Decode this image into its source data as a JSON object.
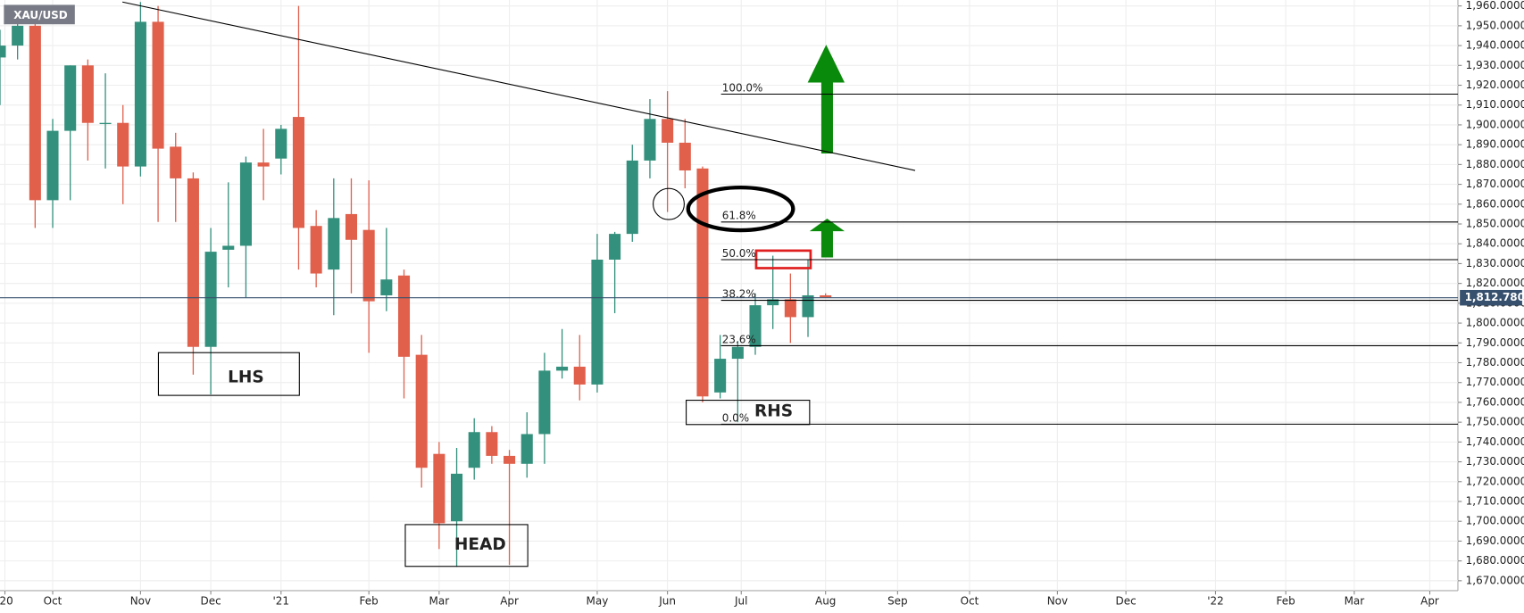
{
  "chart_data": {
    "type": "candlestick",
    "title": "XAU/USD",
    "x": [
      0,
      1,
      2,
      3,
      4,
      5,
      6,
      7,
      8,
      9,
      10,
      11,
      12,
      13,
      14,
      15,
      16,
      17,
      18,
      19,
      20,
      21,
      22,
      23,
      24,
      25,
      26,
      27,
      28,
      29,
      30,
      31,
      32,
      33,
      34,
      35,
      36,
      37,
      38,
      39,
      40,
      41,
      42,
      43,
      44,
      45,
      46,
      47
    ],
    "open": [
      1934,
      1940,
      1950,
      1862,
      1897,
      1930,
      1901,
      1901,
      1879,
      1952,
      1889,
      1873,
      1788,
      1837,
      1839,
      1881,
      1883,
      1904,
      1849,
      1827,
      1855,
      1847,
      1814,
      1824,
      1784,
      1734,
      1700,
      1727,
      1745,
      1733,
      1729,
      1744,
      1776,
      1778,
      1769,
      1832,
      1845,
      1882,
      1903,
      1891,
      1878,
      1765,
      1782,
      1788,
      1809,
      1812,
      1803,
      1814
    ],
    "high": [
      1948,
      1960,
      1958,
      1903,
      1930,
      1933,
      1926,
      1910,
      1962,
      1960,
      1896,
      1876,
      1848,
      1871,
      1884,
      1898,
      1900,
      1960,
      1857,
      1873,
      1873,
      1872,
      1848,
      1827,
      1794,
      1740,
      1737,
      1752,
      1748,
      1736,
      1755,
      1785,
      1797,
      1794,
      1845,
      1846,
      1890,
      1913,
      1917,
      1903,
      1879,
      1794,
      1791,
      1815,
      1834,
      1825,
      1832,
      1815
    ],
    "low": [
      1910,
      1933,
      1848,
      1848,
      1862,
      1882,
      1878,
      1860,
      1874,
      1851,
      1851,
      1774,
      1764,
      1818,
      1813,
      1862,
      1875,
      1827,
      1818,
      1804,
      1815,
      1785,
      1806,
      1762,
      1717,
      1686,
      1677,
      1721,
      1729,
      1678,
      1722,
      1729,
      1772,
      1761,
      1765,
      1805,
      1841,
      1873,
      1856,
      1868,
      1760,
      1762,
      1750,
      1784,
      1797,
      1790,
      1793,
      1813
    ],
    "close": [
      1940,
      1950,
      1862,
      1897,
      1930,
      1901,
      1901,
      1879,
      1952,
      1888,
      1873,
      1788,
      1836,
      1839,
      1881,
      1879,
      1898,
      1848,
      1825,
      1853,
      1842,
      1811,
      1822,
      1783,
      1727,
      1699,
      1724,
      1745,
      1733,
      1729,
      1744,
      1776,
      1778,
      1769,
      1832,
      1845,
      1882,
      1903,
      1891,
      1877,
      1763,
      1782,
      1788,
      1809,
      1812,
      1803,
      1814,
      1813
    ],
    "up_color": "#33907c",
    "down_color": "#e0604c",
    "xlim": [
      0,
      83
    ],
    "xticks": [
      {
        "value": 0.28,
        "label": "'20"
      },
      {
        "value": 3,
        "label": "Oct"
      },
      {
        "value": 8,
        "label": "Nov"
      },
      {
        "value": 12,
        "label": "Dec"
      },
      {
        "value": 16,
        "label": "'21"
      },
      {
        "value": 21,
        "label": "Feb"
      },
      {
        "value": 25,
        "label": "Mar"
      },
      {
        "value": 29,
        "label": "Apr"
      },
      {
        "value": 34,
        "label": "May"
      },
      {
        "value": 38,
        "label": "Jun"
      },
      {
        "value": 42.2,
        "label": "Jul"
      },
      {
        "value": 47,
        "label": "Aug"
      },
      {
        "value": 51.1,
        "label": "Sep"
      },
      {
        "value": 55.2,
        "label": "Oct"
      },
      {
        "value": 60.2,
        "label": "Nov"
      },
      {
        "value": 64.1,
        "label": "Dec"
      },
      {
        "value": 69.2,
        "label": "'22"
      },
      {
        "value": 73.2,
        "label": "Feb"
      },
      {
        "value": 77.1,
        "label": "Mar"
      },
      {
        "value": 81.4,
        "label": "Apr"
      }
    ],
    "ylim": [
      1665,
      1963
    ],
    "yticks": [
      {
        "value": 1670,
        "label": "1,670.0000"
      },
      {
        "value": 1680,
        "label": "1,680.0000"
      },
      {
        "value": 1690,
        "label": "1,690.0000"
      },
      {
        "value": 1700,
        "label": "1,700.0000"
      },
      {
        "value": 1710,
        "label": "1,710.0000"
      },
      {
        "value": 1720,
        "label": "1,720.0000"
      },
      {
        "value": 1730,
        "label": "1,730.0000"
      },
      {
        "value": 1740,
        "label": "1,740.0000"
      },
      {
        "value": 1750,
        "label": "1,750.0000"
      },
      {
        "value": 1760,
        "label": "1,760.0000"
      },
      {
        "value": 1770,
        "label": "1,770.0000"
      },
      {
        "value": 1780,
        "label": "1,780.0000"
      },
      {
        "value": 1790,
        "label": "1,790.0000"
      },
      {
        "value": 1800,
        "label": "1,800.0000"
      },
      {
        "value": 1810,
        "label": "1,810.0000"
      },
      {
        "value": 1820,
        "label": "1,820.0000"
      },
      {
        "value": 1830,
        "label": "1,830.0000"
      },
      {
        "value": 1840,
        "label": "1,840.0000"
      },
      {
        "value": 1850,
        "label": "1,850.0000"
      },
      {
        "value": 1860,
        "label": "1,860.0000"
      },
      {
        "value": 1870,
        "label": "1,870.0000"
      },
      {
        "value": 1880,
        "label": "1,880.0000"
      },
      {
        "value": 1890,
        "label": "1,890.0000"
      },
      {
        "value": 1900,
        "label": "1,900.0000"
      },
      {
        "value": 1910,
        "label": "1,910.0000"
      },
      {
        "value": 1920,
        "label": "1,920.0000"
      },
      {
        "value": 1930,
        "label": "1,930.0000"
      },
      {
        "value": 1940,
        "label": "1,940.0000"
      },
      {
        "value": 1950,
        "label": "1,950.0000"
      },
      {
        "value": 1960,
        "label": "1,960.0000"
      }
    ],
    "grid": true,
    "last_price": {
      "value": 1812.78,
      "label": "1,812.7800"
    },
    "trendline": {
      "x": [
        6.97,
        52.1
      ],
      "y": [
        1962,
        1877
      ]
    },
    "fib_start": 41.05,
    "fib_levels": [
      {
        "value": 1915.5,
        "label": "100.0%"
      },
      {
        "value": 1851,
        "label": "61.8%"
      },
      {
        "value": 1832,
        "label": "50.0%"
      },
      {
        "value": 1811.5,
        "label": "38.2%"
      },
      {
        "value": 1788.6,
        "label": "23.6%"
      },
      {
        "value": 1749,
        "label": "0.0%"
      }
    ],
    "annotations": [
      "LHS",
      "HEAD",
      "RHS"
    ]
  }
}
